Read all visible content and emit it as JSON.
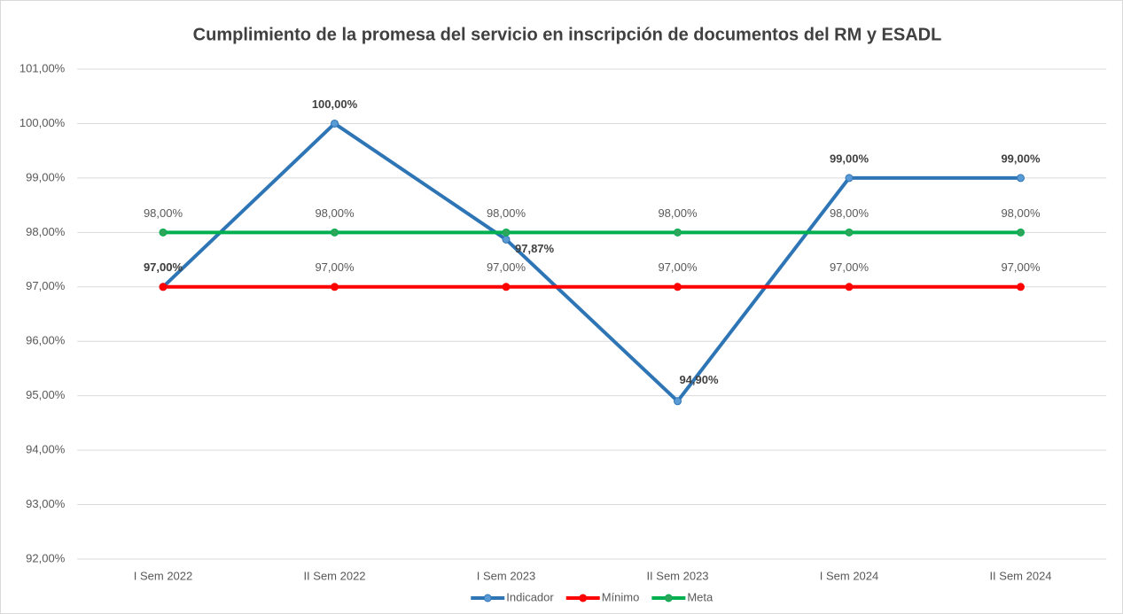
{
  "chart_data": {
    "type": "line",
    "title": "Cumplimiento de la promesa del servicio en inscripción de documentos del RM y ESADL",
    "categories": [
      "I Sem 2022",
      "II Sem 2022",
      "I Sem 2023",
      "II Sem 2023",
      "I Sem 2024",
      "II Sem 2024"
    ],
    "series": [
      {
        "name": "Indicador",
        "color": "#2e75b6",
        "marker_color": "#5b9bd5",
        "values": [
          97,
          100,
          97.87,
          94.9,
          99,
          99
        ],
        "value_labels": [
          "97,00%",
          "100,00%",
          "97,87%",
          "94,90%",
          "99,00%",
          "99,00%"
        ]
      },
      {
        "name": "Mínimo",
        "color": "#ff0000",
        "marker_color": "#ff0000",
        "values": [
          97,
          97,
          97,
          97,
          97,
          97
        ],
        "value_labels": [
          "97,00%",
          "97,00%",
          "97,00%",
          "97,00%",
          "97,00%",
          "97,00%"
        ]
      },
      {
        "name": "Meta",
        "color": "#00b050",
        "marker_color": "#2ea55a",
        "values": [
          98,
          98,
          98,
          98,
          98,
          98
        ],
        "value_labels": [
          "98,00%",
          "98,00%",
          "98,00%",
          "98,00%",
          "98,00%",
          "98,00%"
        ]
      }
    ],
    "ylim": [
      92,
      101
    ],
    "yticks": [
      {
        "value": 92,
        "label": "92,00%"
      },
      {
        "value": 93,
        "label": "93,00%"
      },
      {
        "value": 94,
        "label": "94,00%"
      },
      {
        "value": 95,
        "label": "95,00%"
      },
      {
        "value": 96,
        "label": "96,00%"
      },
      {
        "value": 97,
        "label": "97,00%"
      },
      {
        "value": 98,
        "label": "98,00%"
      },
      {
        "value": 99,
        "label": "99,00%"
      },
      {
        "value": 100,
        "label": "100,00%"
      },
      {
        "value": 101,
        "label": "101,00%"
      }
    ],
    "grid": true,
    "legend": "bottom"
  }
}
